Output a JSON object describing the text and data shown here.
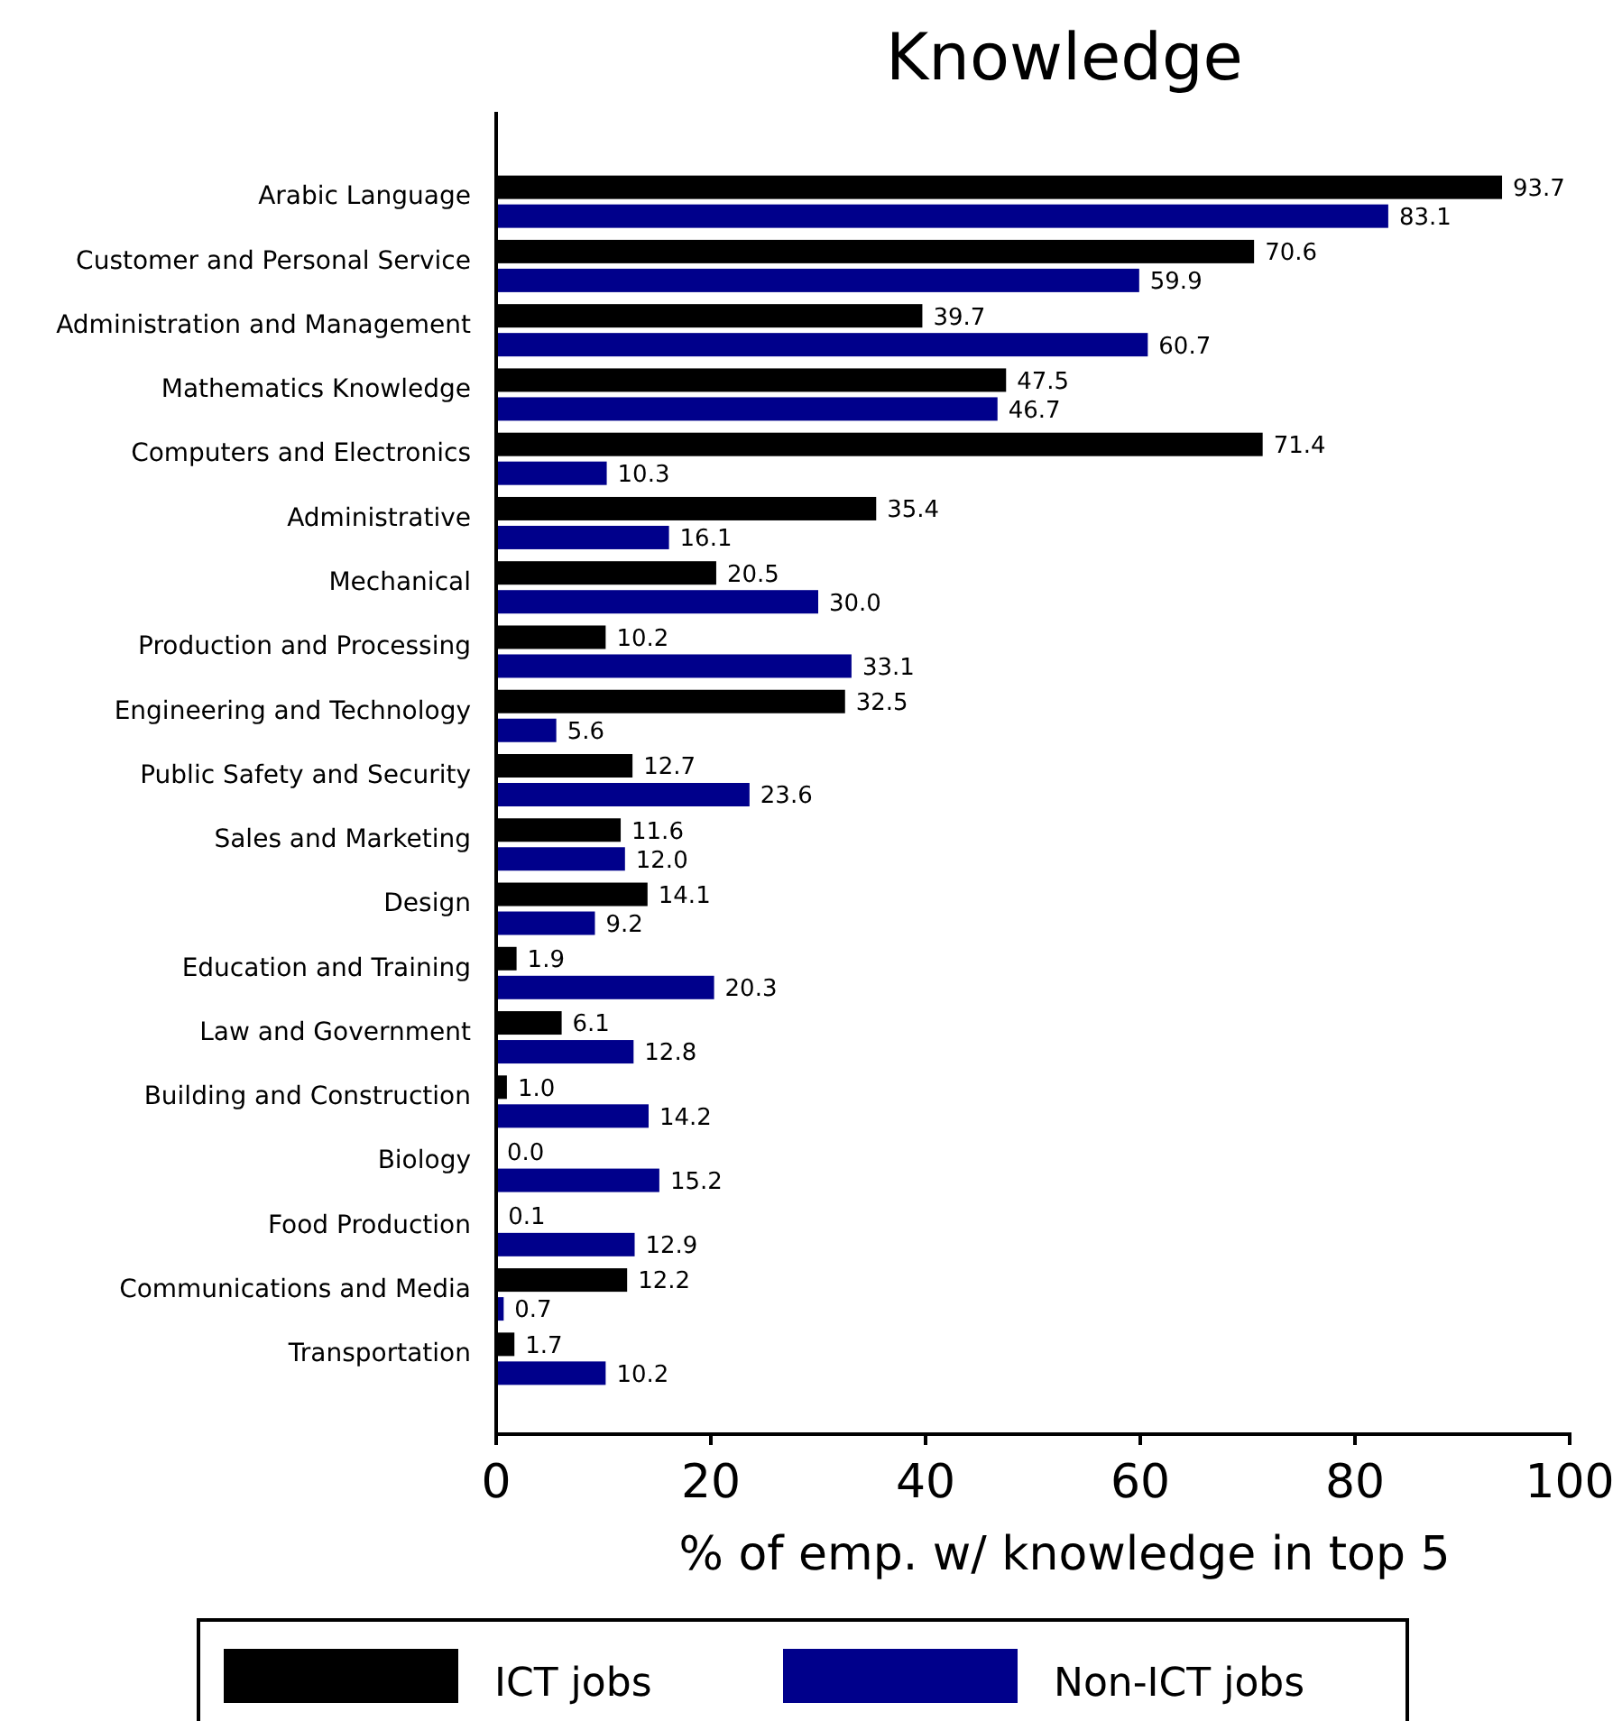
{
  "chart_data": {
    "type": "bar",
    "orientation": "horizontal",
    "title": "Knowledge",
    "xlabel": "% of emp. w/ knowledge in top 5",
    "categories": [
      "Arabic Language",
      "Customer and Personal Service",
      "Administration and Management",
      "Mathematics Knowledge",
      "Computers and Electronics",
      "Administrative",
      "Mechanical",
      "Production and Processing",
      "Engineering and Technology",
      "Public Safety and Security",
      "Sales and Marketing",
      "Design",
      "Education and Training",
      "Law and Government",
      "Building and Construction",
      "Biology",
      "Food Production",
      "Communications and Media",
      "Transportation"
    ],
    "series": [
      {
        "name": "ICT jobs",
        "color": "#000000",
        "values": [
          93.7,
          70.6,
          39.7,
          47.5,
          71.4,
          35.4,
          20.5,
          10.2,
          32.5,
          12.7,
          11.6,
          14.1,
          1.9,
          6.1,
          1.0,
          0.0,
          0.1,
          12.2,
          1.7
        ],
        "value_labels": [
          "93.7",
          "70.6",
          "39.7",
          "47.5",
          "71.4",
          "35.4",
          "20.5",
          "10.2",
          "32.5",
          "12.7",
          "11.6",
          "14.1",
          "1.9",
          "6.1",
          "1.0",
          "0.0",
          "0.1",
          "12.2",
          "1.7"
        ]
      },
      {
        "name": "Non-ICT jobs",
        "color": "#00008b",
        "values": [
          83.1,
          59.9,
          60.7,
          46.7,
          10.3,
          16.1,
          30.0,
          33.1,
          5.6,
          23.6,
          12.0,
          9.2,
          20.3,
          12.8,
          14.2,
          15.2,
          12.9,
          0.7,
          10.2
        ],
        "value_labels": [
          "83.1",
          "59.9",
          "60.7",
          "46.7",
          "10.3",
          "16.1",
          "30.0",
          "33.1",
          "5.6",
          "23.6",
          "12.0",
          "9.2",
          "20.3",
          "12.8",
          "14.2",
          "15.2",
          "12.9",
          "0.7",
          "10.2"
        ]
      }
    ],
    "xlim": [
      0,
      100
    ],
    "xticks": [
      0,
      20,
      40,
      60,
      80,
      100
    ],
    "legend": "bottom",
    "grid": false
  }
}
